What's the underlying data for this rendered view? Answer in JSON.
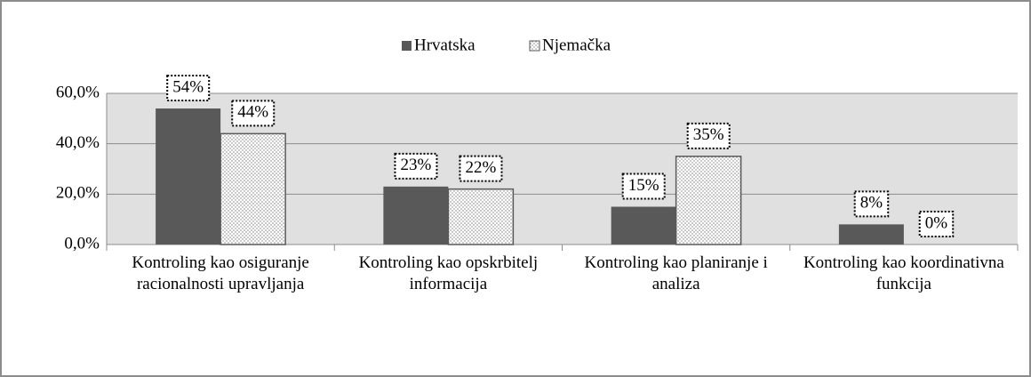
{
  "chart_data": {
    "type": "bar",
    "categories": [
      "Kontroling kao osiguranje racionalnosti upravljanja",
      "Kontroling kao opskrbitelj informacija",
      "Kontroling kao planiranje i analiza",
      "Kontroling kao koordinativna funkcija"
    ],
    "series": [
      {
        "name": "Hrvatska",
        "color": "#595959",
        "values": [
          54,
          23,
          15,
          8
        ],
        "value_labels": [
          "54%",
          "23%",
          "15%",
          "8%"
        ]
      },
      {
        "name": "Njemačka",
        "color": "#7f7f7f",
        "values": [
          44,
          22,
          35,
          0
        ],
        "value_labels": [
          "44%",
          "22%",
          "35%",
          "0%"
        ]
      }
    ],
    "ylim": [
      0,
      60
    ],
    "yticks": [
      {
        "value": 0,
        "label": "0,0%"
      },
      {
        "value": 20,
        "label": "20,0%"
      },
      {
        "value": 40,
        "label": "40,0%"
      },
      {
        "value": 60,
        "label": "60,0%"
      }
    ],
    "grid": true,
    "legend": "top"
  }
}
